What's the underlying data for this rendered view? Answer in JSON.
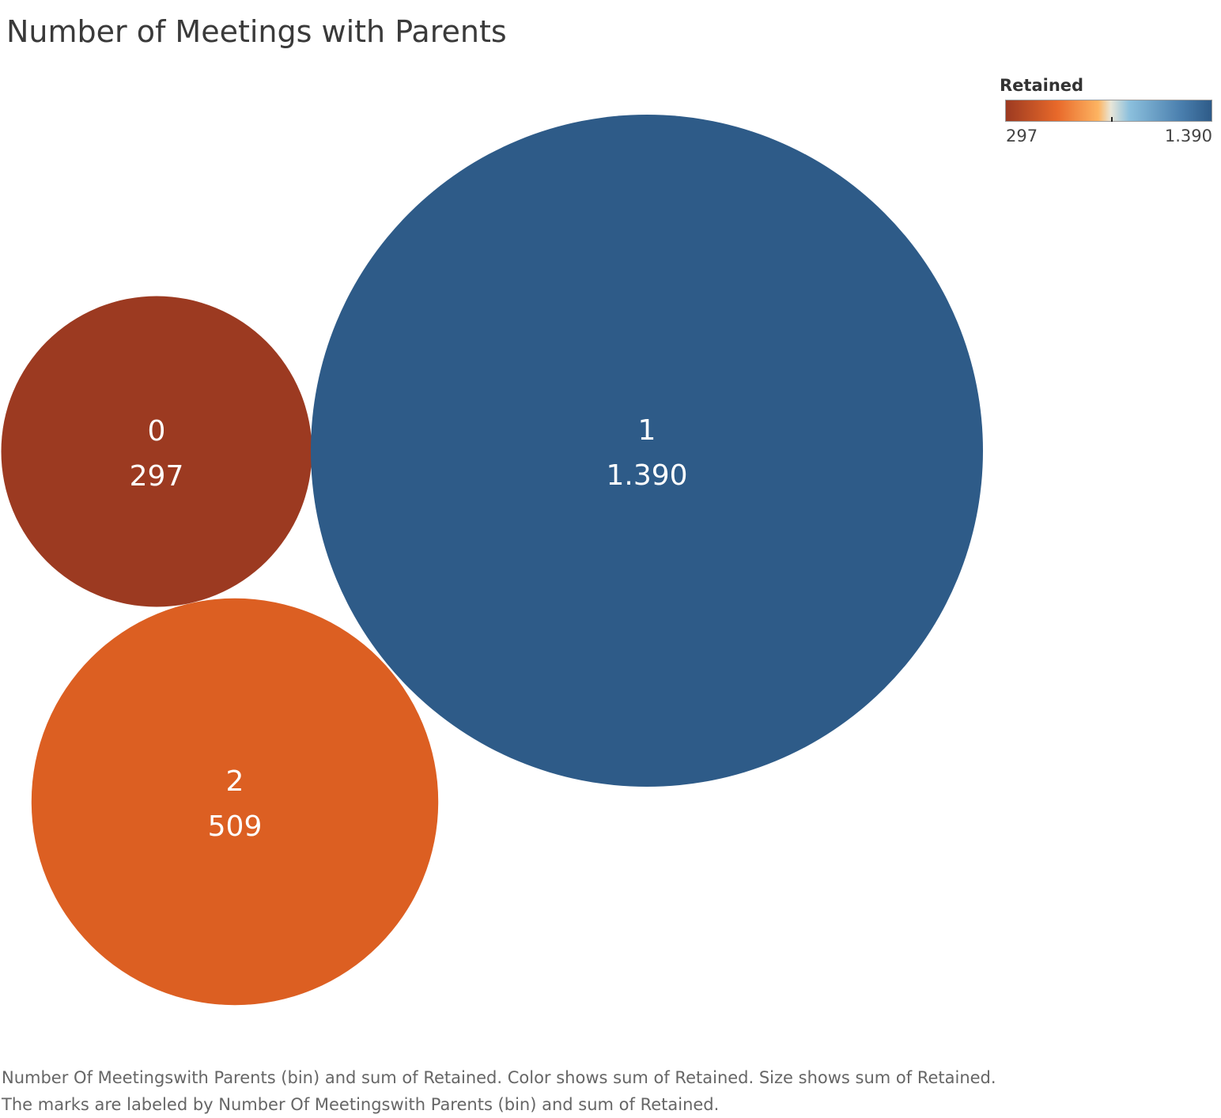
{
  "title": "Number of Meetings with Parents",
  "legend": {
    "title": "Retained",
    "min_label": "297",
    "max_label": "1.390"
  },
  "caption": "Number Of Meetingswith Parents (bin) and sum of Retained.  Color shows sum of Retained.  Size shows sum of Retained.  The marks are labeled by Number Of Meetingswith Parents (bin) and sum of Retained.",
  "chart_data": {
    "type": "bubble",
    "title": "Number of Meetings with Parents",
    "size_measure": "sum of Retained",
    "color_measure": "sum of Retained",
    "points": [
      {
        "bin": "0",
        "retained": 297,
        "label": "297",
        "color": "#9c3a21"
      },
      {
        "bin": "1",
        "retained": 1390,
        "label": "1.390",
        "color": "#2e5b88"
      },
      {
        "bin": "2",
        "retained": 509,
        "label": "509",
        "color": "#dc5f22"
      }
    ],
    "color_range": [
      297,
      1390
    ],
    "legend_placement": "top-right",
    "grid": false
  }
}
